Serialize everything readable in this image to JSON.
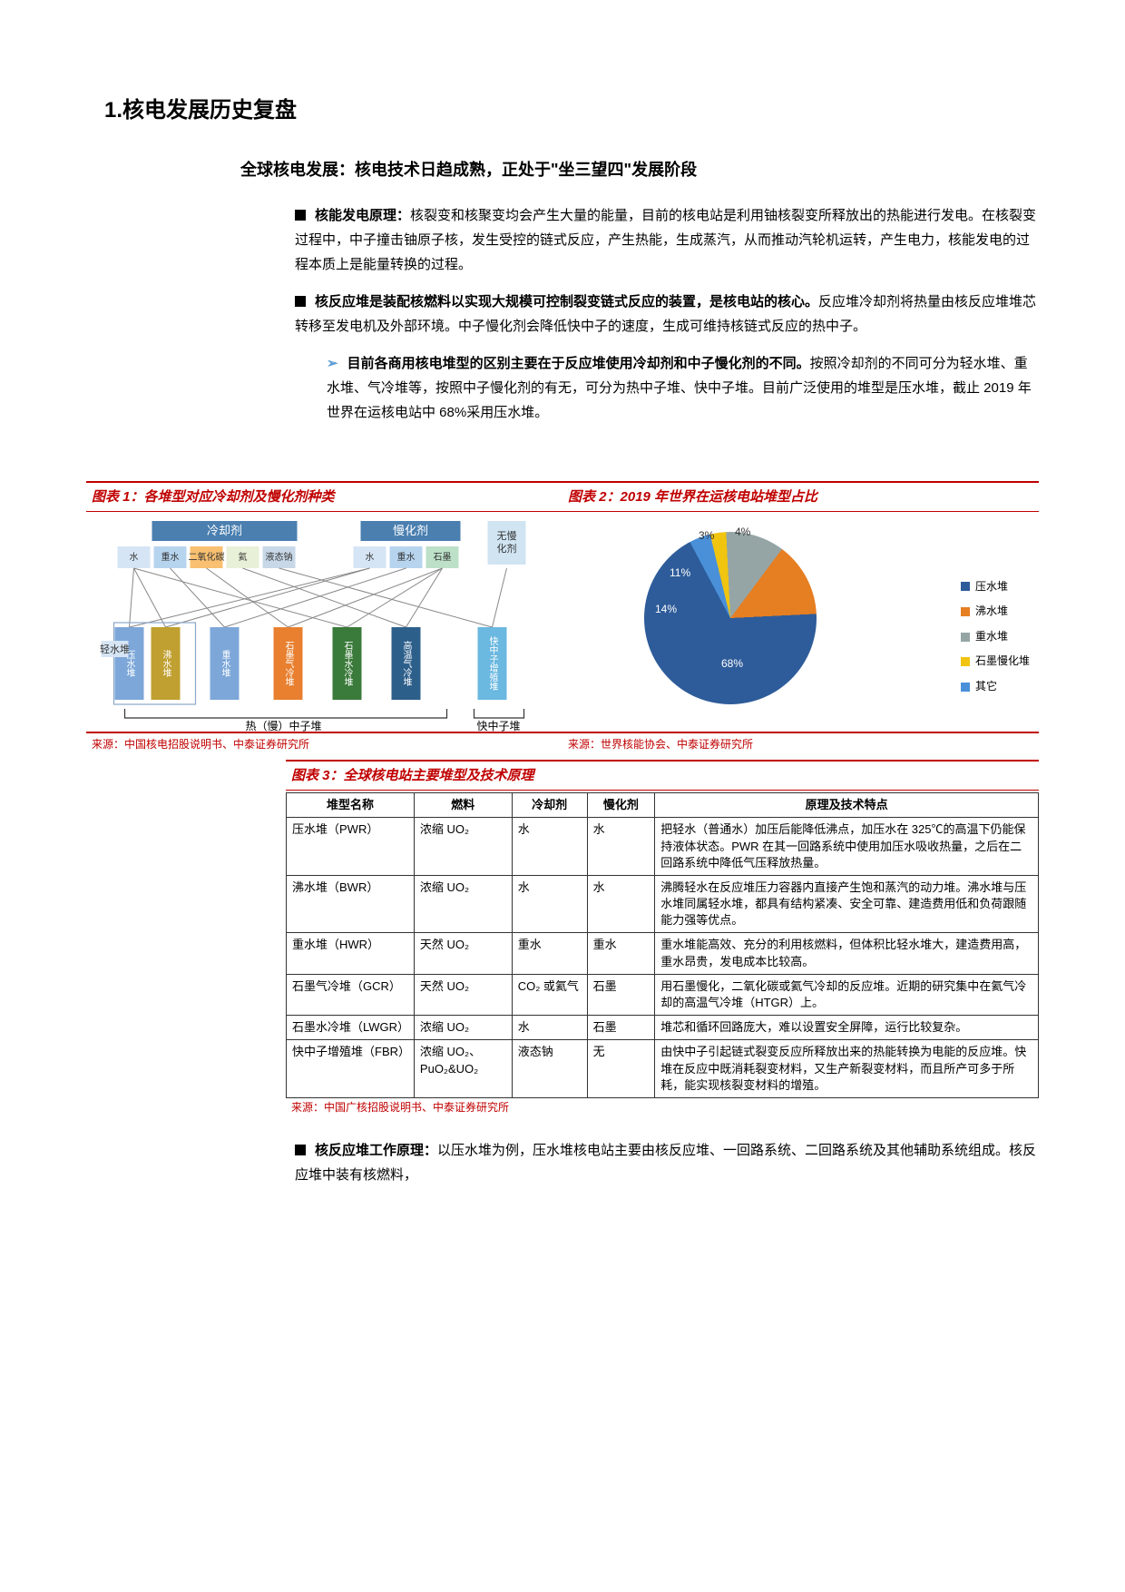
{
  "heading1": "1.核电发展历史复盘",
  "heading2": "全球核电发展：核电技术日趋成熟，正处于\"坐三望四\"发展阶段",
  "bullets": {
    "b1_lead": "核能发电原理：",
    "b1_text": "核裂变和核聚变均会产生大量的能量，目前的核电站是利用铀核裂变所释放出的热能进行发电。在核裂变过程中，中子撞击铀原子核，发生受控的链式反应，产生热能，生成蒸汽，从而推动汽轮机运转，产生电力，核能发电的过程本质上是能量转换的过程。",
    "b2_lead": "核反应堆是装配核燃料以实现大规模可控制裂变链式反应的装置，是核电站的核心。",
    "b2_text": "反应堆冷却剂将热量由核反应堆堆芯转移至发电机及外部环境。中子慢化剂会降低快中子的速度，生成可维持核链式反应的热中子。",
    "b2a_lead": "目前各商用核电堆型的区别主要在于反应堆使用冷却剂和中子慢化剂的不同。",
    "b2a_text": "按照冷却剂的不同可分为轻水堆、重水堆、气冷堆等，按照中子慢化剂的有无，可分为热中子堆、快中子堆。目前广泛使用的堆型是压水堆，截止 2019 年世界在运核电站中 68%采用压水堆。",
    "b3_lead": "核反应堆工作原理：",
    "b3_text": "以压水堆为例，压水堆核电站主要由核反应堆、一回路系统、二回路系统及其他辅助系统组成。核反应堆中装有核燃料，"
  },
  "chart1": {
    "title": "图表 1：各堆型对应冷却剂及慢化剂种类",
    "source": "来源：中国核电招股说明书、中泰证券研究所",
    "headers": {
      "coolant": "冷却剂",
      "moderator": "慢化剂",
      "none": "无慢化剂"
    },
    "coolants": [
      {
        "label": "水",
        "color": "#d6e5f5"
      },
      {
        "label": "重水",
        "color": "#b7d4ef"
      },
      {
        "label": "二氧化碳",
        "color": "#f8c070"
      },
      {
        "label": "氦",
        "color": "#e8f0d8"
      },
      {
        "label": "液态钠",
        "color": "#c8d8e8"
      }
    ],
    "moderators": [
      {
        "label": "水",
        "color": "#d6e5f5"
      },
      {
        "label": "重水",
        "color": "#b7d4ef"
      },
      {
        "label": "石墨",
        "color": "#bce0c8"
      }
    ],
    "reactors": [
      {
        "label": "压水堆",
        "color": "#7da7d9"
      },
      {
        "label": "沸水堆",
        "color": "#c0a030"
      },
      {
        "label": "重水堆",
        "color": "#7da7d9"
      },
      {
        "label": "石墨气冷堆",
        "color": "#e88030"
      },
      {
        "label": "石墨水冷堆",
        "color": "#3a7a3a"
      },
      {
        "label": "高温气冷堆",
        "color": "#2d5f8b"
      },
      {
        "label": "快中子增殖堆",
        "color": "#6bb8e0"
      }
    ],
    "groups": {
      "light": "轻水堆",
      "thermal": "热（慢）中子堆",
      "fast": "快中子堆"
    },
    "header_colors": {
      "coolant": "#4a7fb0",
      "moderator": "#4a7fb0",
      "none": "#d0e4f2"
    },
    "line_color": "#888888"
  },
  "chart2": {
    "title": "图表 2：2019 年世界在运核电站堆型占比",
    "source": "来源：世界核能协会、中泰证券研究所",
    "type": "pie",
    "slices": [
      {
        "label": "压水堆",
        "value": 68,
        "color": "#2e5c9a",
        "text": "68%"
      },
      {
        "label": "沸水堆",
        "value": 14,
        "color": "#e67e22",
        "text": "14%"
      },
      {
        "label": "重水堆",
        "value": 11,
        "color": "#95a5a6",
        "text": "11%"
      },
      {
        "label": "石墨慢化堆",
        "value": 3,
        "color": "#f1c40f",
        "text": "3%"
      },
      {
        "label": "其它",
        "value": 4,
        "color": "#4a90d9",
        "text": "4%"
      }
    ],
    "legend_title": "",
    "background": "#ffffff"
  },
  "chart3": {
    "title": "图表 3：全球核电站主要堆型及技术原理",
    "source": "来源：中国广核招股说明书、中泰证券研究所",
    "columns": [
      "堆型名称",
      "燃料",
      "冷却剂",
      "慢化剂",
      "原理及技术特点"
    ],
    "rows": [
      [
        "压水堆（PWR）",
        "浓缩 UO₂",
        "水",
        "水",
        "把轻水（普通水）加压后能降低沸点，加压水在 325℃的高温下仍能保持液体状态。PWR 在其一回路系统中使用加压水吸收热量，之后在二回路系统中降低气压释放热量。"
      ],
      [
        "沸水堆（BWR）",
        "浓缩 UO₂",
        "水",
        "水",
        "沸腾轻水在反应堆压力容器内直接产生饱和蒸汽的动力堆。沸水堆与压水堆同属轻水堆，都具有结构紧凑、安全可靠、建造费用低和负荷跟随能力强等优点。"
      ],
      [
        "重水堆（HWR）",
        "天然 UO₂",
        "重水",
        "重水",
        "重水堆能高效、充分的利用核燃料，但体积比轻水堆大，建造费用高，重水昂贵，发电成本比较高。"
      ],
      [
        "石墨气冷堆（GCR）",
        "天然 UO₂",
        "CO₂ 或氦气",
        "石墨",
        "用石墨慢化，二氧化碳或氦气冷却的反应堆。近期的研究集中在氦气冷却的高温气冷堆（HTGR）上。"
      ],
      [
        "石墨水冷堆（LWGR）",
        "浓缩 UO₂",
        "水",
        "石墨",
        "堆芯和循环回路庞大，难以设置安全屏障，运行比较复杂。"
      ],
      [
        "快中子增殖堆（FBR）",
        "浓缩 UO₂、PuO₂&UO₂",
        "液态钠",
        "无",
        "由快中子引起链式裂变反应所释放出来的热能转换为电能的反应堆。快堆在反应中既消耗裂变材料，又生产新裂变材料，而且所产可多于所耗，能实现核裂变材料的增殖。"
      ]
    ],
    "col_widths": [
      "17%",
      "13%",
      "10%",
      "9%",
      "51%"
    ]
  }
}
